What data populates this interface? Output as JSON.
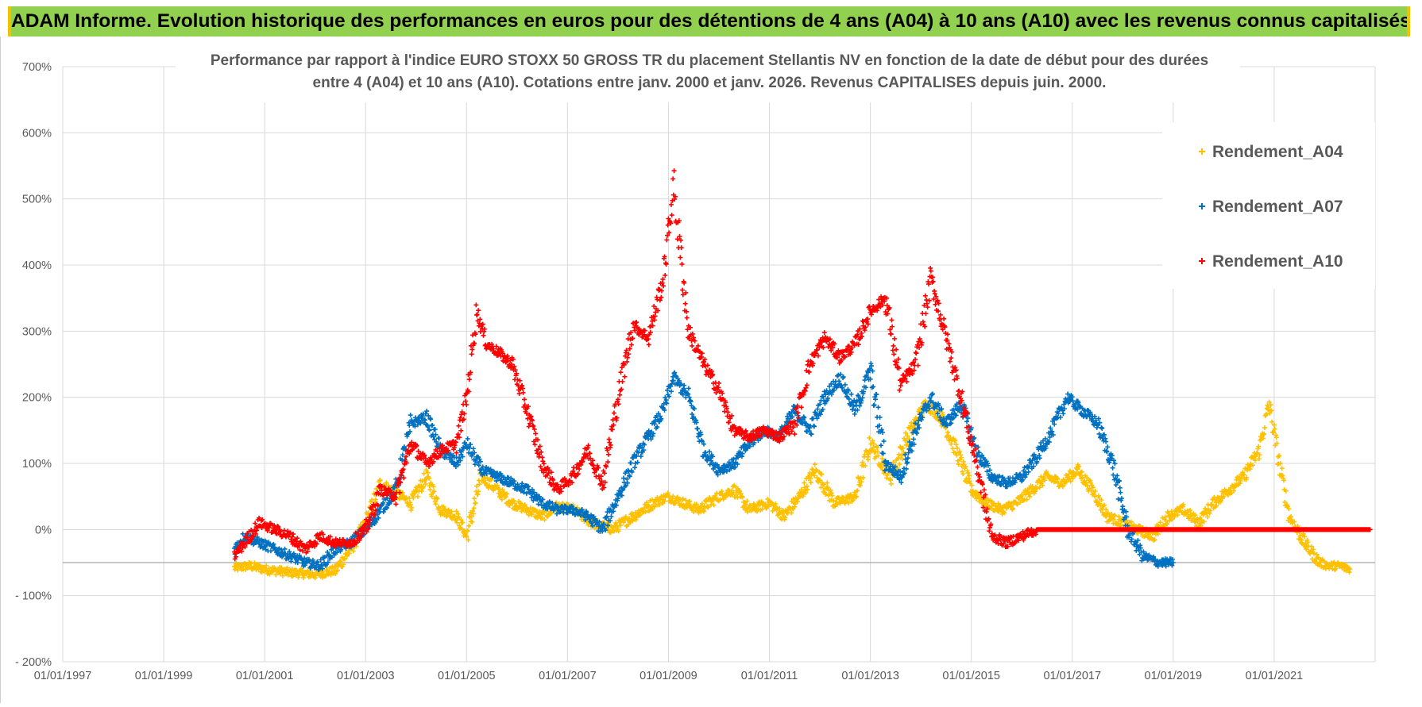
{
  "banner": {
    "title": "ADAM Informe. Evolution historique des performances en euros pour des détentions de 4 ans (A04) à 10 ans (A10) avec les revenus connus capitalisés"
  },
  "colors": {
    "banner_bg": "#92d050",
    "banner_edge": "#f2c200",
    "A04": "#ffc000",
    "A07": "#0070c0",
    "A10": "#ff0000",
    "grid": "#d9d9d9",
    "axis_text": "#595959"
  },
  "chart_data": {
    "type": "scatter",
    "title_line1": "Performance par rapport à l'indice EURO STOXX 50 GROSS TR  du placement Stellantis NV en fonction de la date de début pour des durées",
    "title_line2": "entre 4 (A04) et 10 ans (A10).  Cotations entre janv. 2000 et janv. 2026. Revenus CAPITALISES depuis juin. 2000.",
    "xlabel": "",
    "ylabel": "",
    "xlim": [
      1997.0,
      2023.0
    ],
    "ylim": [
      -200,
      700
    ],
    "x_ticks": [
      1997,
      1999,
      2001,
      2003,
      2005,
      2007,
      2009,
      2011,
      2013,
      2015,
      2017,
      2019,
      2021
    ],
    "x_tick_labels": [
      "01/01/1997",
      "01/01/1999",
      "01/01/2001",
      "01/01/2003",
      "01/01/2005",
      "01/01/2007",
      "01/01/2009",
      "01/01/2011",
      "01/01/2013",
      "01/01/2015",
      "01/01/2017",
      "01/01/2019",
      "01/01/2021"
    ],
    "y_ticks": [
      -200,
      -100,
      0,
      100,
      200,
      300,
      400,
      500,
      600,
      700
    ],
    "y_tick_labels": [
      "- 200%",
      "- 100%",
      "0%",
      "100%",
      "200%",
      "300%",
      "400%",
      "500%",
      "600%",
      "700%"
    ],
    "reference_line": -50,
    "legend_position": "top-right",
    "series": [
      {
        "name": "Rendement_A04",
        "color_key": "A04",
        "x": [
          2000.4,
          2000.7,
          2001.0,
          2001.5,
          2002.0,
          2002.4,
          2002.7,
          2003.0,
          2003.3,
          2003.6,
          2003.9,
          2004.2,
          2004.5,
          2004.8,
          2005.0,
          2005.3,
          2005.6,
          2005.9,
          2006.2,
          2006.5,
          2006.8,
          2007.1,
          2007.5,
          2007.9,
          2008.3,
          2008.7,
          2009.0,
          2009.3,
          2009.6,
          2010.0,
          2010.3,
          2010.6,
          2011.0,
          2011.3,
          2011.6,
          2011.9,
          2012.3,
          2012.7,
          2013.0,
          2013.4,
          2013.8,
          2014.1,
          2014.4,
          2014.7,
          2015.0,
          2015.3,
          2015.6,
          2015.9,
          2016.2,
          2016.5,
          2016.8,
          2017.1,
          2017.4,
          2017.7,
          2018.0,
          2018.3,
          2018.6,
          2018.9,
          2019.2,
          2019.5,
          2019.8,
          2020.1,
          2020.4,
          2020.7,
          2020.9,
          2021.1,
          2021.3,
          2021.6,
          2021.9,
          2022.1,
          2022.3,
          2022.5
        ],
        "y": [
          -58,
          -55,
          -60,
          -65,
          -68,
          -62,
          -30,
          10,
          70,
          55,
          40,
          80,
          30,
          20,
          -10,
          80,
          60,
          40,
          30,
          20,
          35,
          30,
          10,
          0,
          20,
          40,
          50,
          40,
          30,
          50,
          60,
          30,
          40,
          20,
          50,
          90,
          40,
          50,
          130,
          80,
          150,
          190,
          170,
          120,
          60,
          40,
          30,
          40,
          60,
          80,
          70,
          90,
          60,
          20,
          10,
          0,
          -10,
          20,
          30,
          10,
          40,
          60,
          80,
          120,
          190,
          100,
          20,
          -20,
          -50,
          -55,
          -55,
          -60
        ]
      },
      {
        "name": "Rendement_A07",
        "color_key": "A07",
        "x": [
          2000.4,
          2000.6,
          2000.9,
          2001.2,
          2001.5,
          2001.8,
          2002.1,
          2002.4,
          2002.7,
          2003.0,
          2003.3,
          2003.6,
          2003.9,
          2004.2,
          2004.5,
          2004.8,
          2005.0,
          2005.3,
          2005.6,
          2005.9,
          2006.2,
          2006.5,
          2006.8,
          2007.1,
          2007.4,
          2007.7,
          2008.0,
          2008.3,
          2008.6,
          2008.9,
          2009.1,
          2009.4,
          2009.7,
          2010.0,
          2010.3,
          2010.6,
          2010.9,
          2011.2,
          2011.5,
          2011.8,
          2012.1,
          2012.4,
          2012.7,
          2013.0,
          2013.3,
          2013.6,
          2013.9,
          2014.2,
          2014.5,
          2014.8,
          2015.1,
          2015.4,
          2015.7,
          2016.0,
          2016.3,
          2016.6,
          2016.9,
          2017.2,
          2017.5,
          2017.8,
          2018.1,
          2018.4,
          2018.7,
          2019.0
        ],
        "y": [
          -30,
          -10,
          -20,
          -30,
          -40,
          -50,
          -55,
          -30,
          -20,
          0,
          30,
          60,
          160,
          170,
          120,
          100,
          130,
          90,
          80,
          70,
          60,
          40,
          30,
          30,
          20,
          0,
          50,
          100,
          140,
          180,
          230,
          200,
          120,
          90,
          100,
          130,
          150,
          140,
          180,
          150,
          200,
          230,
          180,
          240,
          100,
          80,
          150,
          200,
          160,
          190,
          120,
          80,
          70,
          80,
          110,
          150,
          200,
          180,
          160,
          100,
          0,
          -40,
          -50,
          -50
        ]
      },
      {
        "name": "Rendement_A10",
        "color_key": "A10",
        "x": [
          2000.4,
          2000.6,
          2000.9,
          2001.2,
          2001.5,
          2001.8,
          2002.1,
          2002.4,
          2002.7,
          2003.0,
          2003.3,
          2003.6,
          2003.9,
          2004.2,
          2004.5,
          2004.8,
          2005.0,
          2005.2,
          2005.4,
          2005.6,
          2005.9,
          2006.2,
          2006.5,
          2006.8,
          2007.1,
          2007.4,
          2007.7,
          2008.0,
          2008.3,
          2008.6,
          2008.9,
          2009.1,
          2009.4,
          2009.7,
          2010.0,
          2010.3,
          2010.6,
          2010.9,
          2011.2,
          2011.5,
          2011.8,
          2012.1,
          2012.4,
          2012.7,
          2013.0,
          2013.3,
          2013.6,
          2013.9,
          2014.2,
          2014.5,
          2014.8,
          2015.1,
          2015.4,
          2015.7,
          2016.0,
          2016.3,
          2016.6,
          2016.9,
          2017.2,
          2017.5,
          2017.8,
          2018.1,
          2018.4,
          2018.7,
          2019.0,
          2019.3,
          2019.6,
          2019.9,
          2020.2,
          2020.5,
          2020.8,
          2021.1,
          2021.4,
          2021.7,
          2022.0,
          2022.3,
          2022.6,
          2022.9
        ],
        "y": [
          -40,
          -20,
          10,
          0,
          -10,
          -30,
          -10,
          -20,
          -20,
          0,
          60,
          50,
          130,
          100,
          120,
          130,
          200,
          330,
          280,
          270,
          250,
          180,
          100,
          60,
          80,
          120,
          70,
          200,
          310,
          290,
          380,
          520,
          300,
          250,
          210,
          150,
          140,
          150,
          140,
          160,
          250,
          290,
          260,
          280,
          330,
          350,
          220,
          250,
          380,
          290,
          200,
          100,
          -10,
          -20,
          -10,
          0,
          0,
          0,
          0,
          0,
          0,
          0,
          0,
          0,
          0,
          0,
          0,
          0,
          0,
          0,
          0,
          0,
          0,
          0,
          0,
          0,
          0,
          0
        ]
      }
    ]
  }
}
